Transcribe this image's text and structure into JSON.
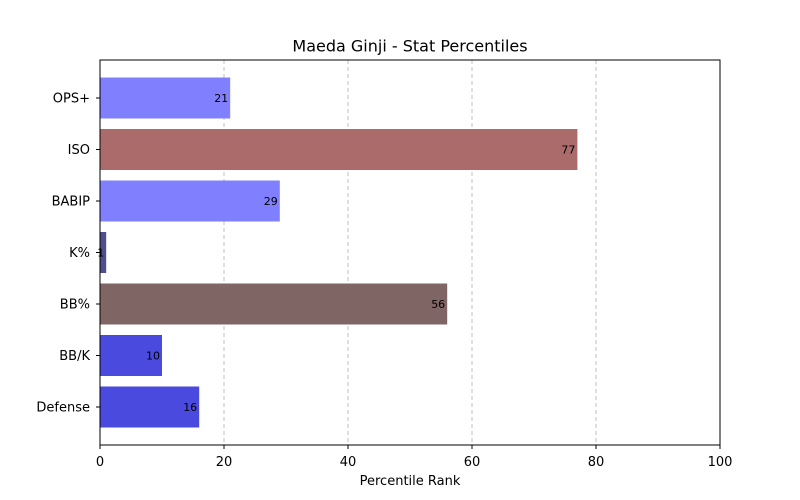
{
  "chart_data": {
    "type": "bar",
    "orientation": "horizontal",
    "title": "Maeda Ginji - Stat Percentiles",
    "xlabel": "Percentile Rank",
    "ylabel": "",
    "xlim": [
      0,
      100
    ],
    "x_ticks": [
      "0",
      "20",
      "40",
      "60",
      "80",
      "100"
    ],
    "grid": "vertical dashed",
    "legend": "none",
    "categories": [
      "OPS+",
      "ISO",
      "BABIP",
      "K%",
      "BB%",
      "BB/K",
      "Defense"
    ],
    "values": [
      21,
      77,
      29,
      1,
      56,
      10,
      16
    ],
    "value_labels": [
      "21",
      "77",
      "29",
      "1",
      "56",
      "10",
      "16"
    ],
    "colors": [
      "#8080ff",
      "#ab6b6b",
      "#8080ff",
      "#4f4f8f",
      "#806565",
      "#4a4ade",
      "#4a4ade"
    ]
  }
}
